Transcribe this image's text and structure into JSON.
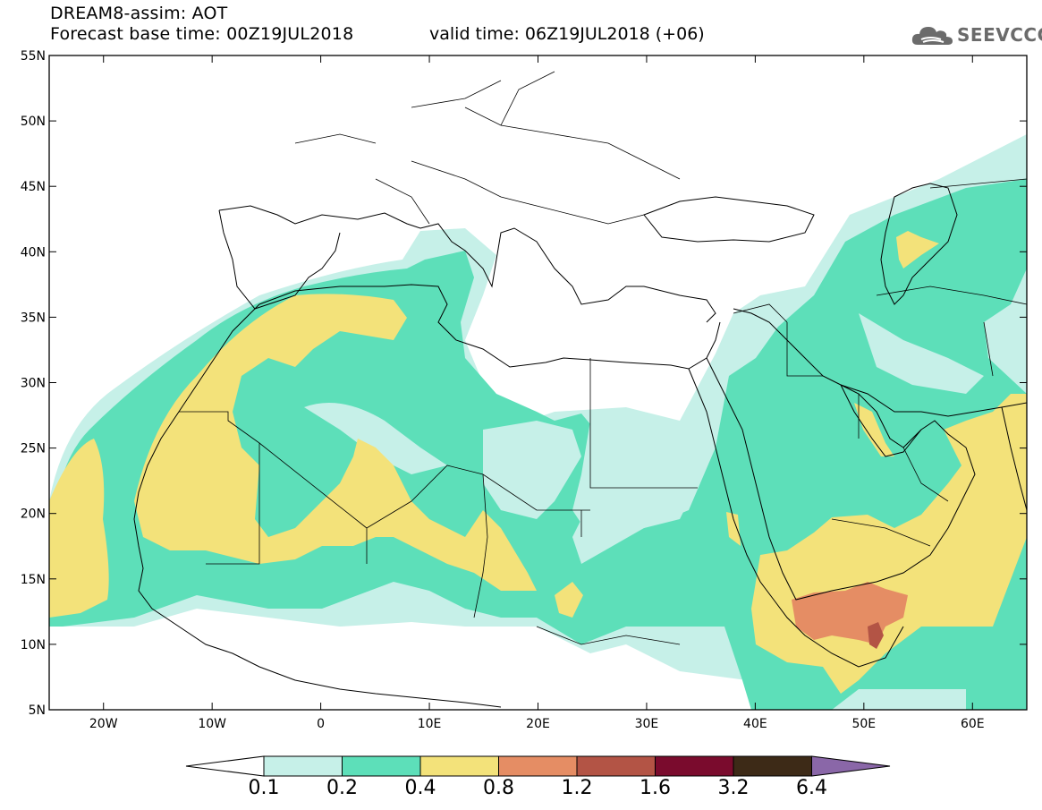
{
  "header": {
    "line1": "DREAM8-assim: AOT",
    "line2": "Forecast base time: 00Z19JUL2018",
    "valid_time": "valid time: 06Z19JUL2018 (+06)"
  },
  "logo": {
    "text": "SEEVCCC",
    "icon": "cloud-icon"
  },
  "map": {
    "lon_range": [
      -25,
      65
    ],
    "lat_range": [
      5,
      55
    ],
    "lon_ticks": [
      {
        "value": -20,
        "label": "20W"
      },
      {
        "value": -10,
        "label": "10W"
      },
      {
        "value": 0,
        "label": "0"
      },
      {
        "value": 10,
        "label": "10E"
      },
      {
        "value": 20,
        "label": "20E"
      },
      {
        "value": 30,
        "label": "30E"
      },
      {
        "value": 40,
        "label": "40E"
      },
      {
        "value": 50,
        "label": "50E"
      },
      {
        "value": 60,
        "label": "60E"
      }
    ],
    "lat_ticks": [
      {
        "value": 5,
        "label": "5N"
      },
      {
        "value": 10,
        "label": "10N"
      },
      {
        "value": 15,
        "label": "15N"
      },
      {
        "value": 20,
        "label": "20N"
      },
      {
        "value": 25,
        "label": "25N"
      },
      {
        "value": 30,
        "label": "30N"
      },
      {
        "value": 35,
        "label": "35N"
      },
      {
        "value": 40,
        "label": "40N"
      },
      {
        "value": 45,
        "label": "45N"
      },
      {
        "value": 50,
        "label": "50N"
      },
      {
        "value": 55,
        "label": "55N"
      }
    ]
  },
  "colorbar": {
    "levels": [
      "0.1",
      "0.2",
      "0.4",
      "0.8",
      "1.2",
      "1.6",
      "3.2",
      "6.4"
    ],
    "colors": [
      "#c6f0e8",
      "#5ddfb9",
      "#f3e27a",
      "#e58d64",
      "#b35445",
      "#7a0b2d",
      "#3d2a17"
    ],
    "under_color": "#ffffff",
    "over_color": "#8a67a8"
  },
  "colors": {
    "c1": "#c6f0e8",
    "c2": "#5ddfb9",
    "c3": "#f3e27a",
    "c4": "#e58d64",
    "c5": "#b35445",
    "c6": "#7a0b2d"
  }
}
